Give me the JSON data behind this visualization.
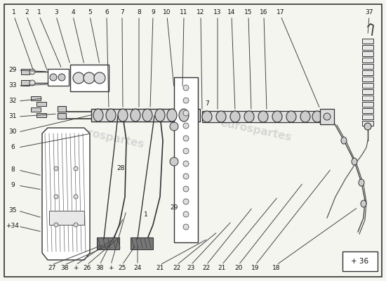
{
  "bg_color": "#f5f5f0",
  "border_color": "#333333",
  "line_color": "#333333",
  "figsize": [
    5.5,
    4.0
  ],
  "dpi": 100,
  "watermark_color": "#c8c8c8",
  "corner_box": {
    "text": "+ 36"
  }
}
